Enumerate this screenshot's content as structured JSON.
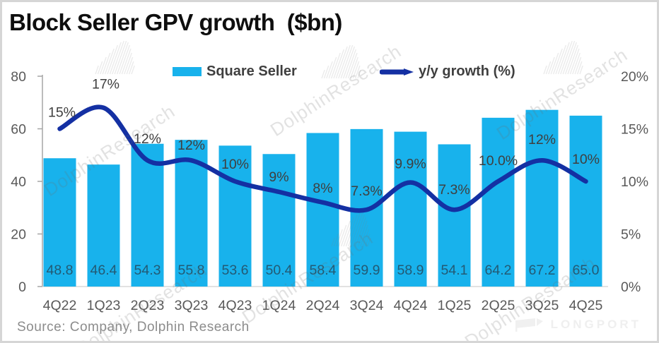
{
  "title": "Block Seller GPV growth  ($bn)",
  "source_note": "Source: Company, Dolphin Research",
  "watermark": {
    "text": "DolphinResearch",
    "logo_text": "LONGPORT"
  },
  "colors": {
    "bar": "#18b2ec",
    "line": "#1430a3",
    "axis_text": "#595959",
    "growth_label_text": "#3f3f3f",
    "bar_label_text": "#235a74",
    "axis_line": "#a6a6a6",
    "baseline": "#d9d9d9"
  },
  "legend": {
    "items": [
      {
        "label": "Square Seller",
        "marker": "bar"
      },
      {
        "label": "y/y growth (%)",
        "marker": "line"
      }
    ]
  },
  "chart_data": {
    "type": "bar+line combo",
    "title": "Block Seller GPV growth ($bn)",
    "categories": [
      "4Q22",
      "1Q23",
      "2Q23",
      "3Q23",
      "4Q23",
      "1Q24",
      "2Q24",
      "3Q24",
      "4Q24",
      "1Q25",
      "2Q25",
      "3Q25",
      "4Q25"
    ],
    "series": [
      {
        "name": "Square Seller",
        "type": "bar",
        "axis": "left",
        "unit": "$bn",
        "values": [
          48.8,
          46.4,
          54.3,
          55.8,
          53.6,
          50.4,
          58.4,
          59.9,
          58.9,
          54.1,
          64.2,
          67.2,
          65.0
        ],
        "data_labels": [
          "48.8",
          "46.4",
          "54.3",
          "55.8",
          "53.6",
          "50.4",
          "58.4",
          "59.9",
          "58.9",
          "54.1",
          "64.2",
          "67.2",
          "65.0"
        ]
      },
      {
        "name": "y/y growth (%)",
        "type": "line",
        "axis": "right",
        "unit": "%",
        "values": [
          15,
          17,
          12,
          12,
          10,
          9,
          8,
          7.3,
          9.9,
          7.3,
          10.0,
          12,
          10
        ],
        "data_labels": [
          "15%",
          "17%",
          "12%",
          "12%",
          "10%",
          "9%",
          "8%",
          "7.3%",
          "9.9%",
          "7.3%",
          "10.0%",
          "12%",
          "10%"
        ]
      }
    ],
    "left_axis": {
      "min": 0,
      "max": 80,
      "ticks": [
        "80",
        "60",
        "40",
        "20",
        "0"
      ]
    },
    "right_axis": {
      "min": 0,
      "max": 20,
      "ticks": [
        "20%",
        "15%",
        "10%",
        "5%",
        "0%"
      ]
    },
    "grid": false,
    "legend_position": "top-center"
  }
}
